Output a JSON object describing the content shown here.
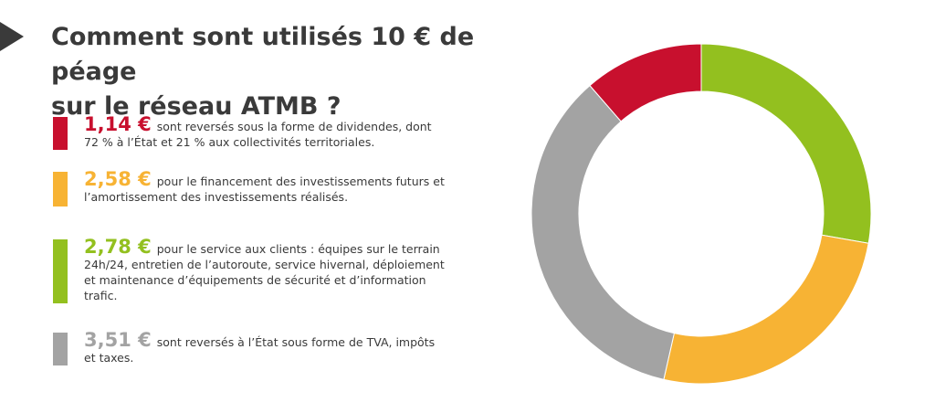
{
  "title_line1": "Comment sont utilisés 10 € de péage",
  "title_line2": "sur le réseau ATMB ?",
  "colors": {
    "red": "#c8102e",
    "orange": "#f7b334",
    "green": "#93c01f",
    "gray": "#a3a3a3",
    "title": "#3a3a3a"
  },
  "legend": [
    {
      "amount": "1,14 €",
      "text": "sont reversés sous la forme de dividendes, dont 72 % à l’État et 21 % aux collectivités territoriales."
    },
    {
      "amount": "2,58 €",
      "text": "pour le financement des investissements futurs et l’amortissement des investissements réalisés."
    },
    {
      "amount": "2,78 €",
      "text": "pour le service aux clients : équipes sur le terrain 24h/24, entretien de l’autoroute, service hivernal, déploiement et maintenance d’équipements de sécurité et d’information trafic."
    },
    {
      "amount": "3,51 €",
      "text": "sont reversés à l’État sous forme de TVA, impôts et taxes."
    }
  ],
  "chart_data": {
    "type": "pie",
    "title": "Comment sont utilisés 10 € de péage sur le réseau ATMB ?",
    "categories": [
      "dividendes",
      "investissements",
      "service aux clients",
      "TVA, impôts et taxes"
    ],
    "values": [
      1.14,
      2.58,
      2.78,
      3.51
    ],
    "unit": "€",
    "colors": [
      "#c8102e",
      "#f7b334",
      "#93c01f",
      "#a3a3a3"
    ],
    "donut": true
  }
}
